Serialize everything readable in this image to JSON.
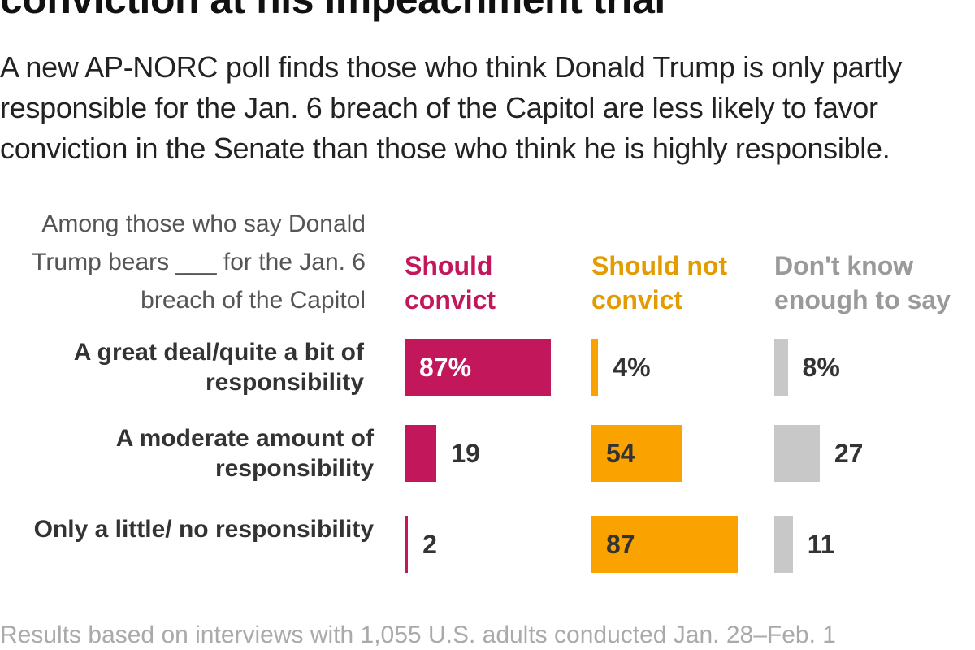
{
  "chart_data": {
    "type": "bar",
    "title": "conviction at his impeachment trial",
    "subtitle": "A new AP-NORC poll finds those who think Donald Trump is only partly responsible for the Jan. 6 breach of the Capitol are less likely to favor conviction in the Senate than those who think he is highly responsible.",
    "category_label": "Among those who say Donald Trump bears ___ for the Jan. 6 breach of the Capitol",
    "categories": [
      "A great deal/quite a bit of responsibility",
      "A moderate amount of responsibility",
      "Only a little/ no responsibility"
    ],
    "series": [
      {
        "name": "Should convict",
        "color": "#c2185b",
        "values": [
          87,
          19,
          2
        ],
        "value_labels": [
          "87%",
          "19",
          "2"
        ]
      },
      {
        "name": "Should not convict",
        "color": "#f9a200",
        "values": [
          4,
          54,
          87
        ],
        "value_labels": [
          "4%",
          "54",
          "87"
        ]
      },
      {
        "name": "Don't know enough to say",
        "color": "#c8c8c8",
        "values": [
          8,
          27,
          11
        ],
        "value_labels": [
          "8%",
          "27",
          "11"
        ]
      }
    ],
    "note": "Results based on interviews with 1,055 U.S. adults conducted Jan. 28–Feb. 1"
  }
}
